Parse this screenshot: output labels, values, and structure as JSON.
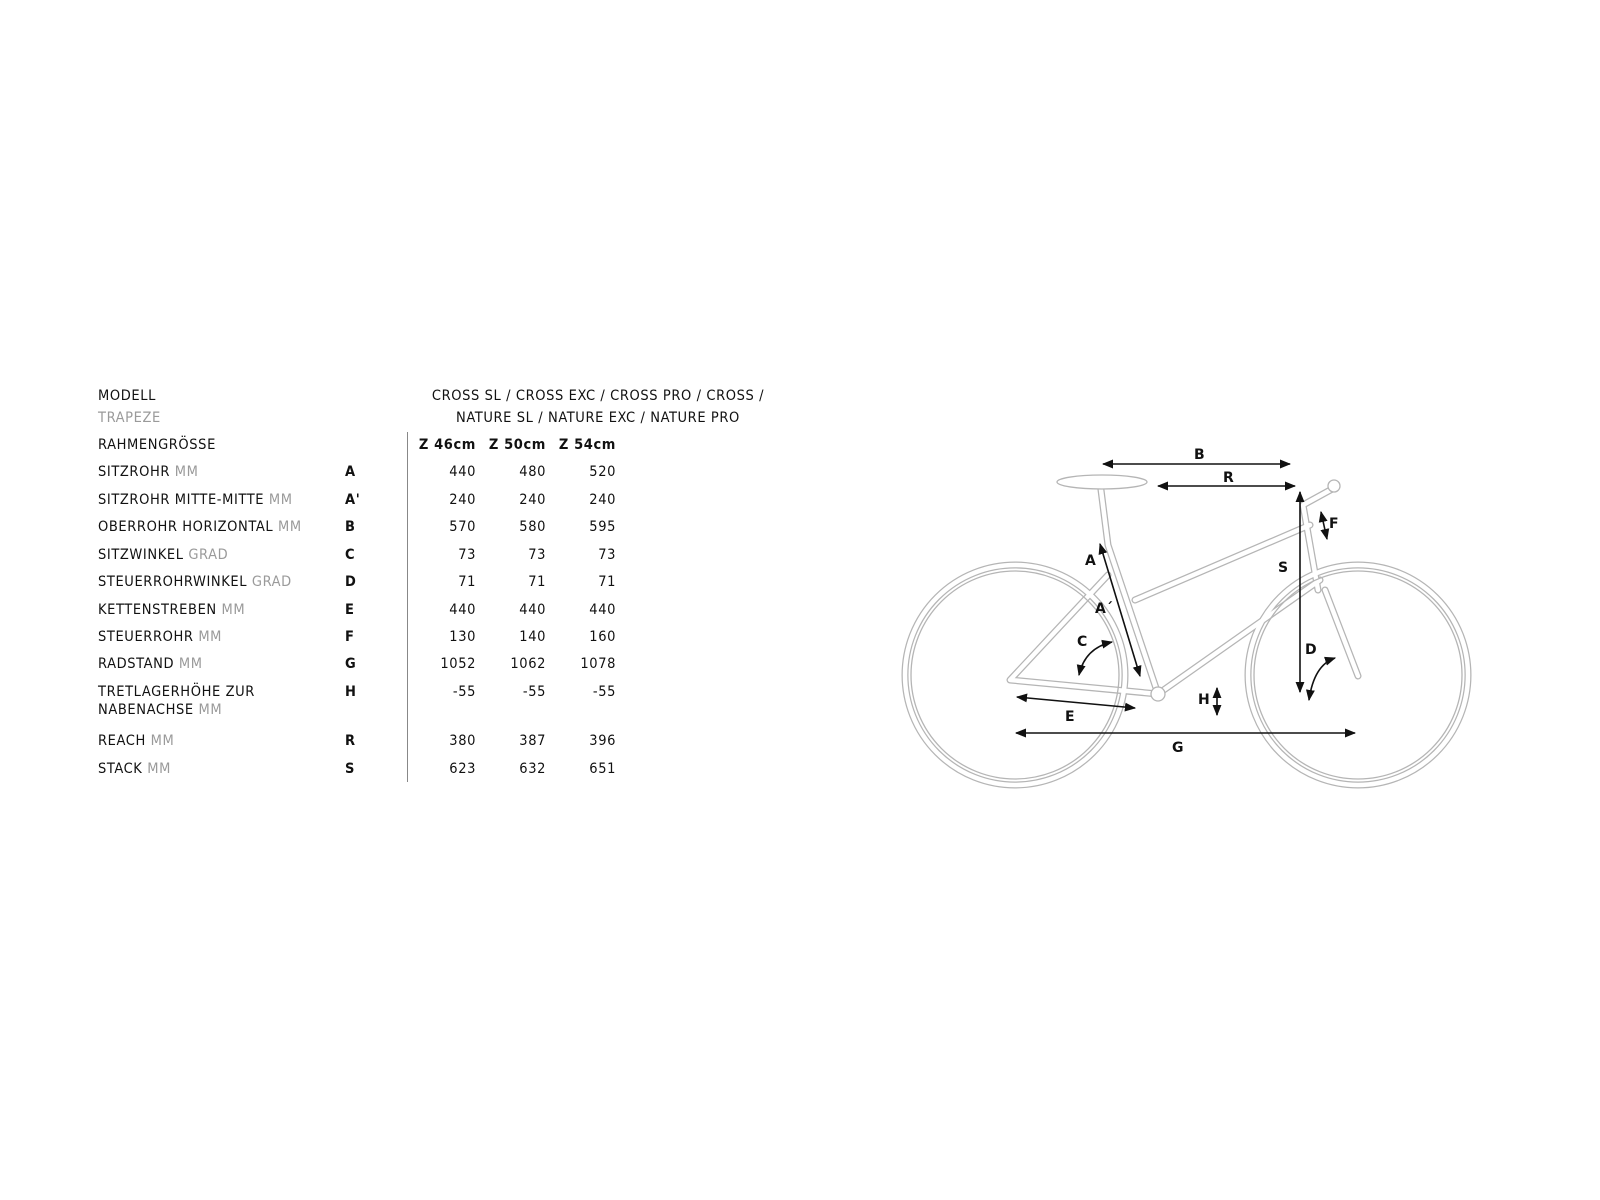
{
  "table": {
    "model_label": "MODELL",
    "model_sub": "TRAPEZE",
    "model_names_line1": "CROSS SL / CROSS EXC / CROSS PRO / CROSS /",
    "model_names_line2": "NATURE SL / NATURE EXC /  NATURE PRO",
    "frame_size_label": "RAHMENGRÖSSE",
    "sizes": [
      "Z 46cm",
      "Z 50cm",
      "Z 54cm"
    ],
    "rows": [
      {
        "label": "SITZROHR",
        "unit": "MM",
        "letter": "A",
        "values": [
          "440",
          "480",
          "520"
        ]
      },
      {
        "label": "SITZROHR MITTE-MITTE",
        "unit": "MM",
        "letter": "A'",
        "values": [
          "240",
          "240",
          "240"
        ]
      },
      {
        "label": "OBERROHR HORIZONTAL",
        "unit": "MM",
        "letter": "B",
        "values": [
          "570",
          "580",
          "595"
        ]
      },
      {
        "label": "SITZWINKEL",
        "unit": "GRAD",
        "letter": "C",
        "values": [
          "73",
          "73",
          "73"
        ]
      },
      {
        "label": "STEUERROHRWINKEL",
        "unit": "GRAD",
        "letter": "D",
        "values": [
          "71",
          "71",
          "71"
        ]
      },
      {
        "label": "KETTENSTREBEN",
        "unit": "MM",
        "letter": "E",
        "values": [
          "440",
          "440",
          "440"
        ]
      },
      {
        "label": "STEUERROHR",
        "unit": "MM",
        "letter": "F",
        "values": [
          "130",
          "140",
          "160"
        ]
      },
      {
        "label": "RADSTAND",
        "unit": "MM",
        "letter": "G",
        "values": [
          "1052",
          "1062",
          "1078"
        ]
      },
      {
        "label": "TRETLAGERHÖHE ZUR",
        "label2": "NABENACHSE",
        "unit": "MM",
        "letter": "H",
        "values": [
          "-55",
          "-55",
          "-55"
        ]
      },
      {
        "label": "REACH",
        "unit": "MM",
        "letter": "R",
        "values": [
          "380",
          "387",
          "396"
        ]
      },
      {
        "label": "STACK",
        "unit": "MM",
        "letter": "S",
        "values": [
          "623",
          "632",
          "651"
        ]
      }
    ]
  },
  "diagram": {
    "labels": {
      "A": "A",
      "A2": "A´",
      "B": "B",
      "C": "C",
      "D": "D",
      "E": "E",
      "F": "F",
      "G": "G",
      "H": "H",
      "R": "R",
      "S": "S"
    },
    "frame_color": "#b5b5b5",
    "arrow_color": "#111111"
  }
}
